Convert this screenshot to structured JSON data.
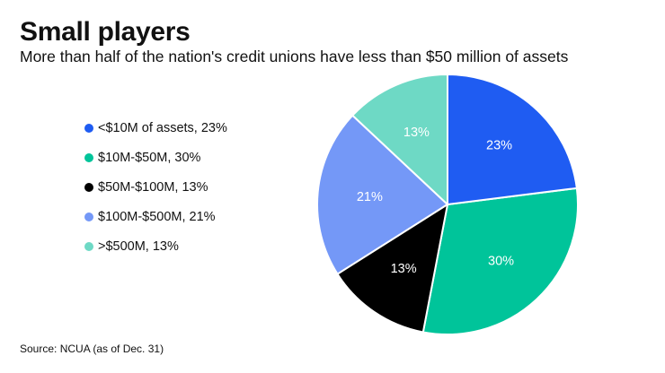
{
  "header": {
    "title": "Small players",
    "subtitle": "More than half of the nation's credit unions have less than $50 million of assets"
  },
  "source": "Source: NCUA (as of Dec. 31)",
  "chart_data": {
    "type": "pie",
    "title": "Small players",
    "subtitle": "More than half of the nation's credit unions have less than $50 million of assets",
    "legend_position": "left",
    "start_angle_deg": 0,
    "direction": "clockwise",
    "slices": [
      {
        "label": "<$10M of assets, 23%",
        "value": 23,
        "data_label": "23%",
        "color": "#1f5cf2",
        "label_color": "#ffffff"
      },
      {
        "label": "$10M-$50M, 30%",
        "value": 30,
        "data_label": "30%",
        "color": "#00c49a",
        "label_color": "#ffffff"
      },
      {
        "label": "$50M-$100M, 13%",
        "value": 13,
        "data_label": "13%",
        "color": "#000000",
        "label_color": "#ffffff"
      },
      {
        "label": "$100M-$500M, 21%",
        "value": 21,
        "data_label": "21%",
        "color": "#7498f7",
        "label_color": "#ffffff"
      },
      {
        "label": ">$500M, 13%",
        "value": 13,
        "data_label": "13%",
        "color": "#6ed9c5",
        "label_color": "#ffffff"
      }
    ],
    "draw_order": [
      1,
      0,
      3,
      2,
      4
    ]
  }
}
